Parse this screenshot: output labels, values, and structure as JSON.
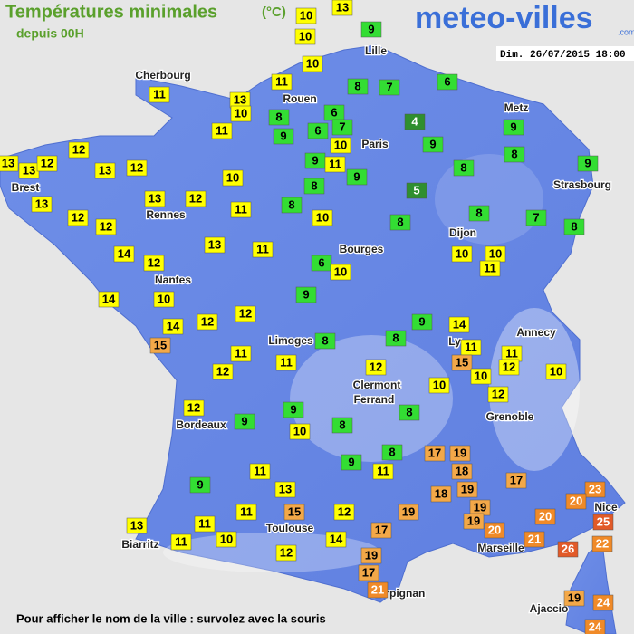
{
  "header": {
    "title": "Températures minimales",
    "unit": "(°C)",
    "subtitle": "depuis 00H",
    "logo": "meteo-villes",
    "logo_suffix": ".com",
    "date": "Dim. 26/07/2015 18:00"
  },
  "cities": [
    "Lille",
    "Cherbourg",
    "Rouen",
    "Paris",
    "Metz",
    "Strasbourg",
    "Brest",
    "Rennes",
    "Dijon",
    "Bourges",
    "Nantes",
    "Annecy",
    "Limoges",
    "Ly",
    "Clermont",
    "Ferrand",
    "Grenoble",
    "Bordeaux",
    "Nice",
    "Toulouse",
    "Biarritz",
    "Marseille",
    "Perpignan",
    "Ajaccio"
  ],
  "stations": [
    13,
    10,
    9,
    10,
    10,
    11,
    8,
    7,
    6,
    11,
    13,
    10,
    11,
    8,
    6,
    9,
    6,
    7,
    10,
    4,
    9,
    9,
    8,
    9,
    12,
    13,
    13,
    12,
    13,
    12,
    10,
    9,
    11,
    9,
    8,
    8,
    5,
    13,
    12,
    13,
    11,
    8,
    12,
    12,
    10,
    8,
    8,
    7,
    8,
    14,
    12,
    13,
    11,
    6,
    10,
    10,
    10,
    11,
    14,
    10,
    9,
    14,
    12,
    12,
    9,
    14,
    15,
    11,
    8,
    8,
    11,
    11,
    12,
    11,
    15,
    10,
    12,
    10,
    12,
    10,
    12,
    12,
    9,
    8,
    9,
    10,
    8,
    8,
    9,
    11,
    17,
    19,
    18,
    11,
    9,
    13,
    19,
    18,
    17,
    23,
    20,
    25,
    11,
    11,
    15,
    12,
    19,
    19,
    19,
    20,
    13,
    17,
    20,
    21,
    10,
    11,
    14,
    26,
    22,
    12,
    19,
    17,
    21,
    19,
    24,
    24
  ],
  "footer": "Pour afficher le nom de la ville : survolez avec la souris"
}
